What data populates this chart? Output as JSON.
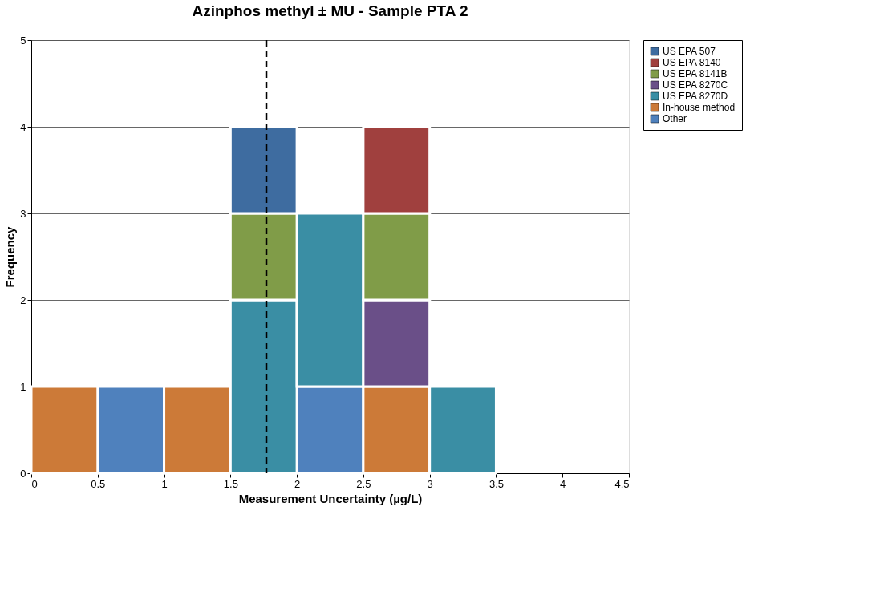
{
  "chart_data": {
    "type": "bar",
    "title": "Azinphos methyl ± MU - Sample PTA 2",
    "xlabel": "Measurement Uncertainty (µg/L)",
    "ylabel": "Frequency",
    "x": [
      0.25,
      0.75,
      1.25,
      1.75,
      2.25,
      2.75,
      3.25,
      3.75,
      4.25
    ],
    "stacked": true,
    "series": [
      {
        "name": "Other",
        "color": "#4f81bd",
        "values": [
          0,
          1,
          0,
          0,
          1,
          0,
          0,
          0,
          0
        ]
      },
      {
        "name": "In-house method",
        "color": "#cc7a38",
        "values": [
          1,
          0,
          1,
          0,
          0,
          1,
          0,
          0,
          0
        ]
      },
      {
        "name": "US EPA 8270D",
        "color": "#3a8ea4",
        "values": [
          0,
          0,
          0,
          2,
          2,
          0,
          1,
          0,
          0
        ]
      },
      {
        "name": "US EPA 8270C",
        "color": "#6a4f88",
        "values": [
          0,
          0,
          0,
          0,
          0,
          1,
          0,
          0,
          0
        ]
      },
      {
        "name": "US EPA 8141B",
        "color": "#809c48",
        "values": [
          0,
          0,
          0,
          1,
          0,
          1,
          0,
          0,
          0
        ]
      },
      {
        "name": "US EPA 8140",
        "color": "#a0403e",
        "values": [
          0,
          0,
          0,
          0,
          0,
          1,
          0,
          0,
          0
        ]
      },
      {
        "name": "US EPA 507",
        "color": "#3e6ca0",
        "values": [
          0,
          0,
          0,
          1,
          0,
          0,
          0,
          0,
          0
        ]
      }
    ],
    "xlim": [
      0,
      4.5
    ],
    "xticks": [
      0,
      0.5,
      1,
      1.5,
      2,
      2.5,
      3,
      3.5,
      4,
      4.5
    ],
    "ylim": [
      0,
      5
    ],
    "yticks": [
      0,
      1,
      2,
      3,
      4,
      5
    ],
    "ref_lines": [
      {
        "axis": "x",
        "value": 1.77,
        "color": "#000000",
        "line_style": "dashed"
      }
    ],
    "grid": "y",
    "legend": "right"
  }
}
